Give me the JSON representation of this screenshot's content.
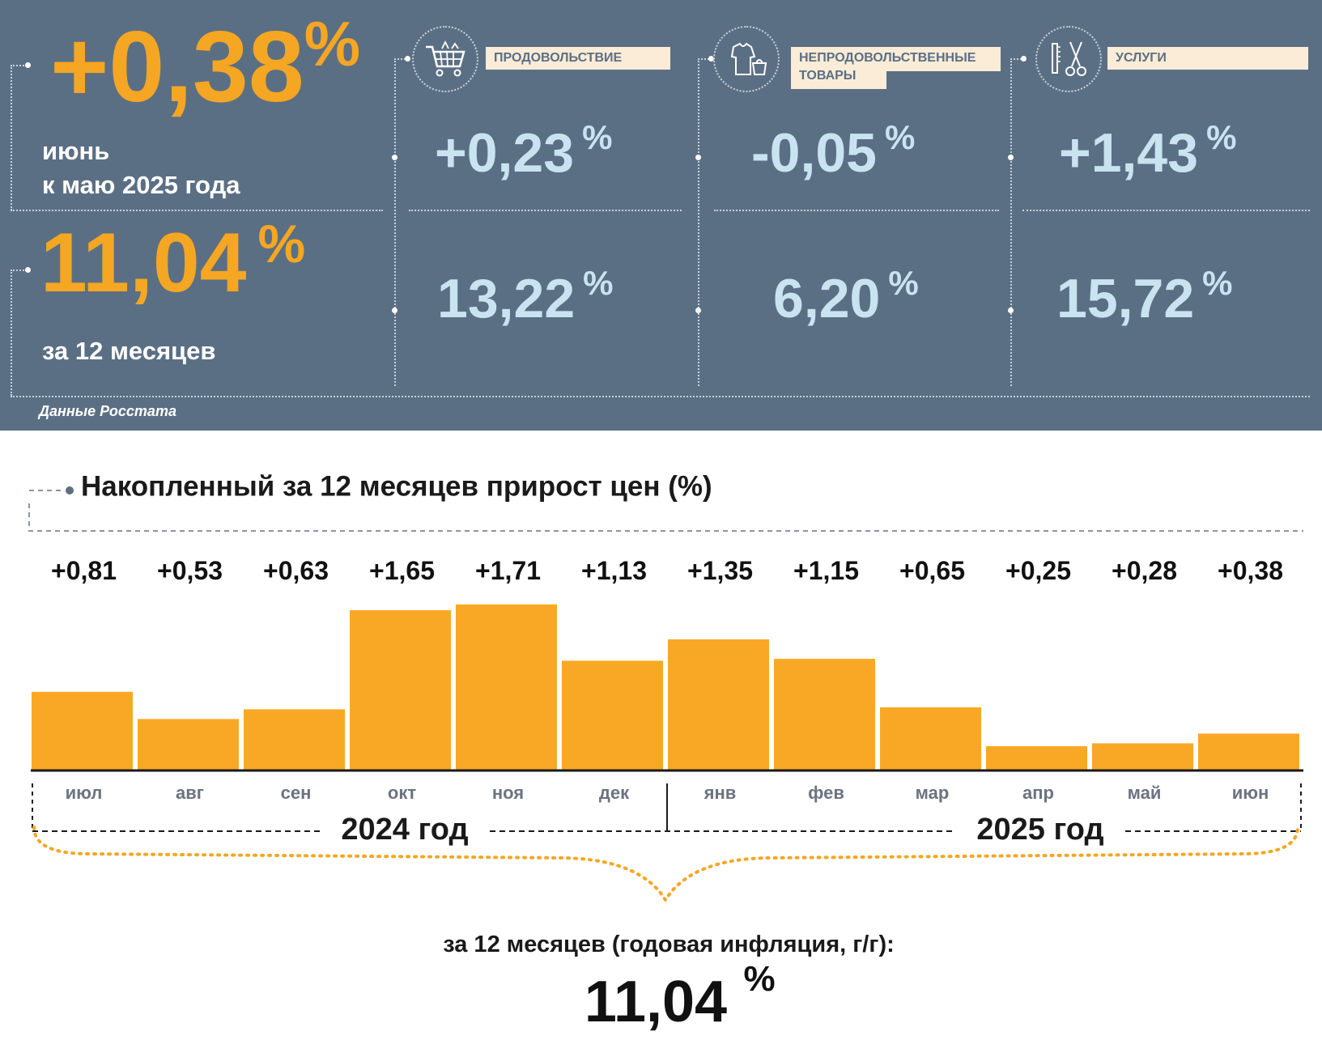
{
  "summary": {
    "monthly_value": "+0,38",
    "monthly_pct": "%",
    "monthly_caption_line1": "июнь",
    "monthly_caption_line2": "к маю 2025 года",
    "annual_value": "11,04",
    "annual_pct": "%",
    "annual_caption": "за 12 месяцев",
    "source": "Данные Росстата"
  },
  "categories": [
    {
      "label": "ПРОДОВОЛЬСТВИЕ",
      "label2": "",
      "monthly": "+0,23",
      "annual": "13,22",
      "icon": "shopping-cart-icon"
    },
    {
      "label": "НЕПРОДОВОЛЬСТВЕННЫЕ",
      "label2": "ТОВАРЫ",
      "monthly": "-0,05",
      "annual": "6,20",
      "icon": "clothing-icon"
    },
    {
      "label": "УСЛУГИ",
      "label2": "",
      "monthly": "+1,43",
      "annual": "15,72",
      "icon": "scissors-comb-icon"
    }
  ],
  "pct_sign": "%",
  "colors": {
    "panel": "#5b6f84",
    "accent": "#f5a623",
    "light_blue": "#c9e3f1",
    "label_bg": "#fbecd8"
  },
  "chart_data": {
    "type": "bar",
    "title": "Накопленный за 12 месяцев прирост цен (%)",
    "categories": [
      "июл",
      "авг",
      "сен",
      "окт",
      "ноя",
      "дек",
      "янв",
      "фев",
      "мар",
      "апр",
      "май",
      "июн"
    ],
    "values": [
      0.81,
      0.53,
      0.63,
      1.65,
      1.71,
      1.13,
      1.35,
      1.15,
      0.65,
      0.25,
      0.28,
      0.38
    ],
    "value_labels": [
      "+0,81",
      "+0,53",
      "+0,63",
      "+1,65",
      "+1,71",
      "+1,13",
      "+1,35",
      "+1,15",
      "+0,65",
      "+0,25",
      "+0,28",
      "+0,38"
    ],
    "bar_color": "#f9a825",
    "year_groups": [
      {
        "label": "2024 год",
        "count": 6
      },
      {
        "label": "2025 год",
        "count": 6
      }
    ],
    "total_caption": "за 12 месяцев (годовая инфляция, г/г):",
    "total_value": "11,04",
    "total_pct": "%"
  }
}
